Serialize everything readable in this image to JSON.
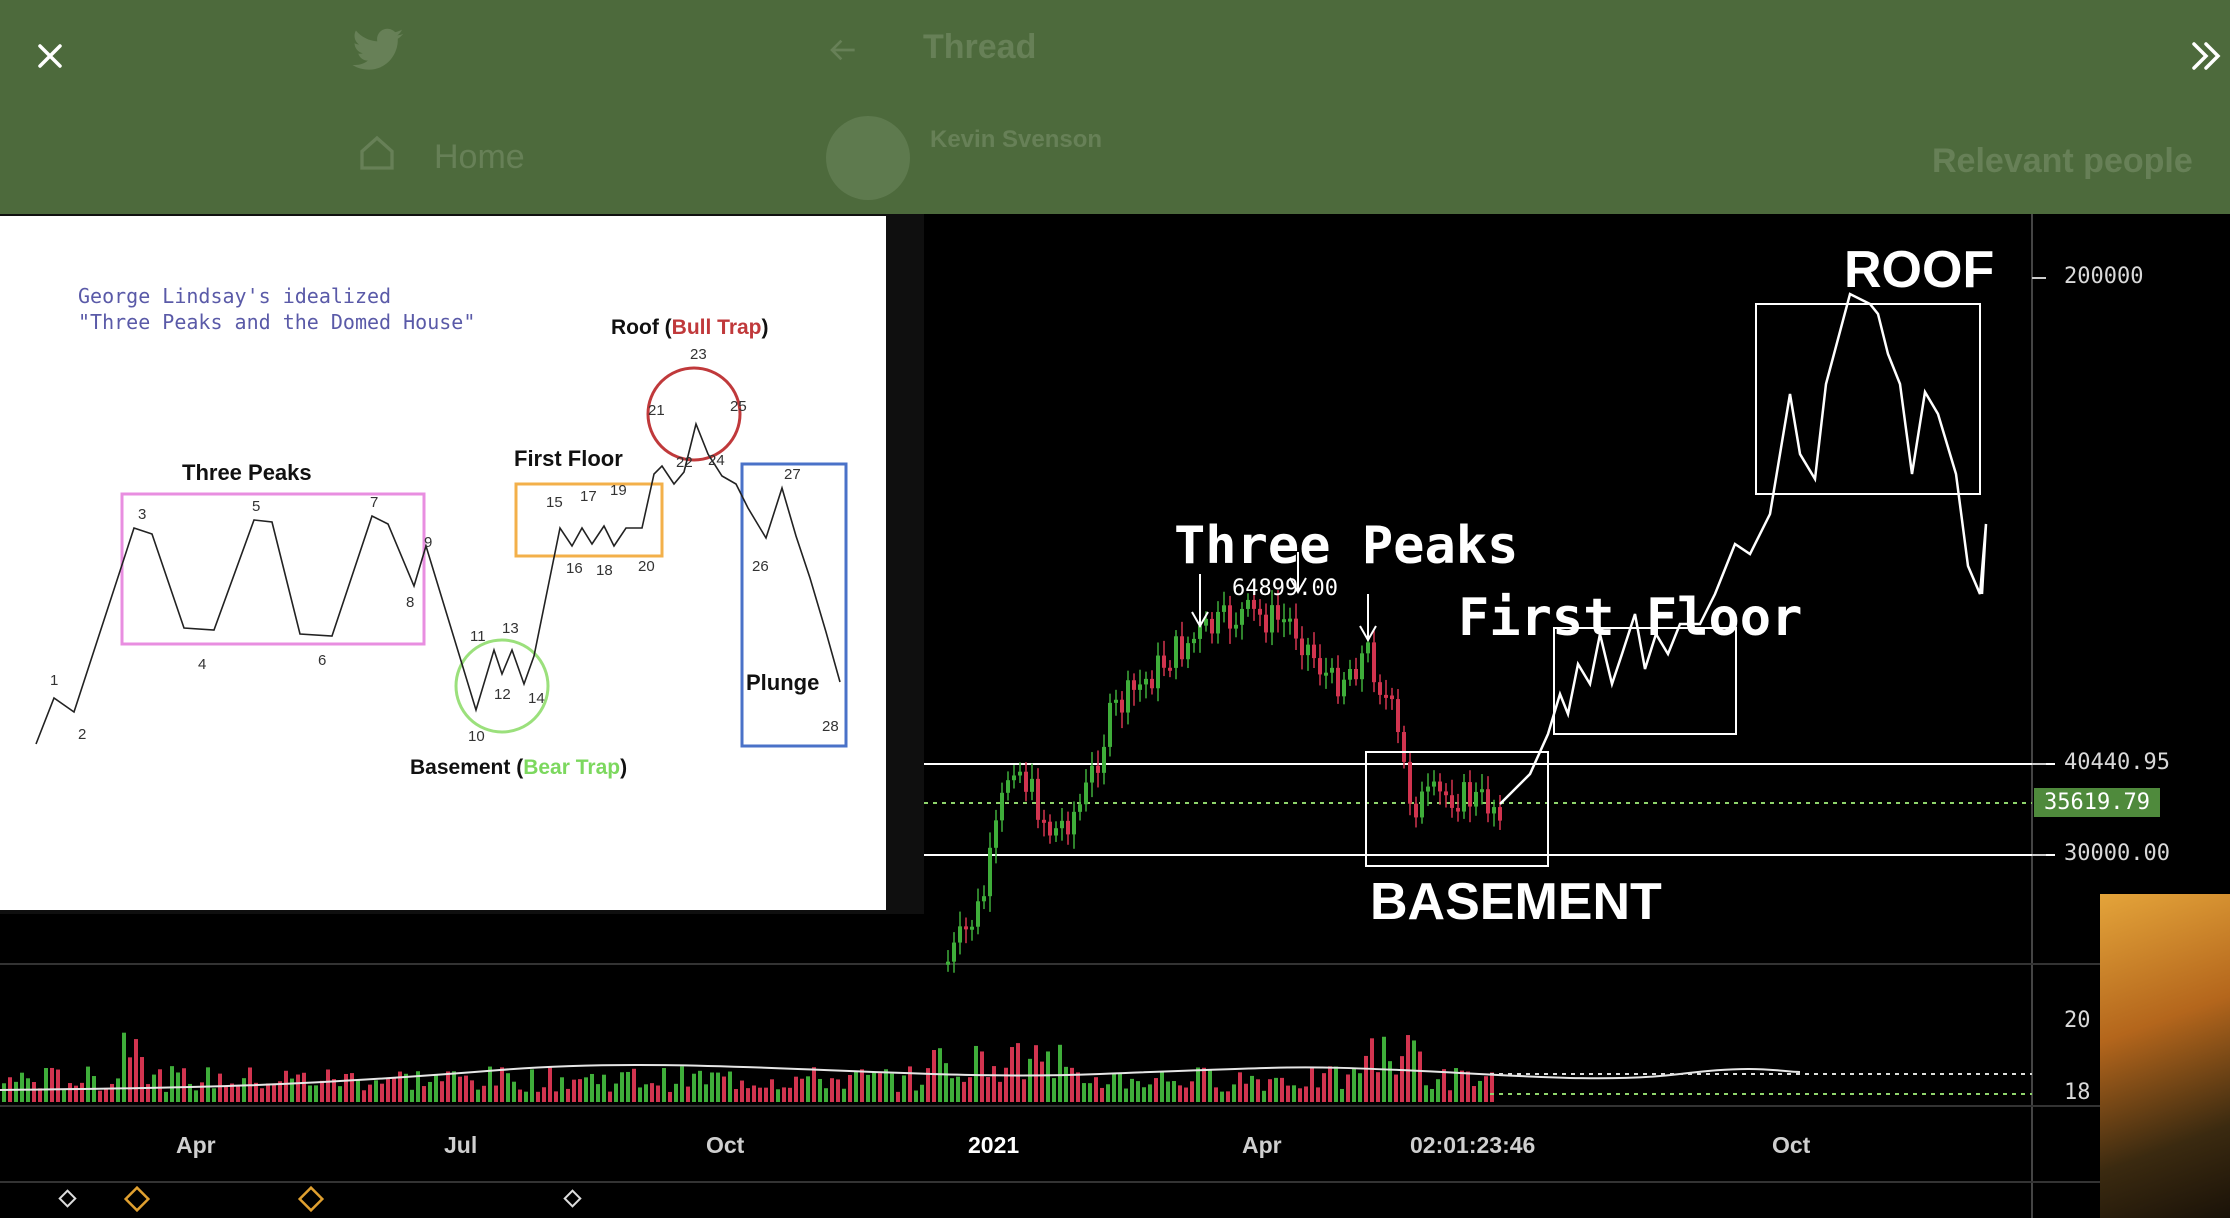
{
  "viewer": {
    "close_label": "×",
    "expand_label": "»"
  },
  "background_page": {
    "nav_home": "Home",
    "thread_title": "Thread",
    "author_name": "Kevin Svenson",
    "sidebar_heading": "Relevant people"
  },
  "diagram": {
    "title_line1": "George Lindsay's idealized",
    "title_line2": "\"Three Peaks and the Domed House\"",
    "roof_label": "Roof (",
    "roof_highlight": "Bull Trap",
    "roof_close": ")",
    "three_peaks_label": "Three Peaks",
    "first_floor_label": "First Floor",
    "plunge_label": "Plunge",
    "basement_label": "Basement (",
    "basement_highlight": "Bear Trap",
    "basement_close": ")",
    "point_numbers": [
      "1",
      "2",
      "3",
      "4",
      "5",
      "6",
      "7",
      "8",
      "9",
      "10",
      "11",
      "12",
      "13",
      "14",
      "15",
      "16",
      "17",
      "18",
      "19",
      "20",
      "21",
      "22",
      "23",
      "24",
      "25",
      "26",
      "27",
      "28"
    ],
    "colors": {
      "three_peaks_box": "#e88ee0",
      "first_floor_box": "#f3b04a",
      "roof_circle": "#c0393b",
      "basement_circle": "#9be07c",
      "plunge_box": "#4a72c8",
      "bull_trap": "#c0393b",
      "bear_trap": "#7cd85e",
      "title_text": "#5a5aa8"
    }
  },
  "chart": {
    "annotations": {
      "three_peaks": "Three Peaks",
      "first_floor": "First Floor",
      "roof": "ROOF",
      "basement": "BASEMENT",
      "peak_value": "64899.00"
    },
    "price_axis": [
      "200000",
      "40440.95",
      "30000.00"
    ],
    "current_price": "35619.79",
    "volume_axis": [
      "20",
      "18"
    ],
    "time_axis": [
      "Apr",
      "Jul",
      "Oct",
      "2021",
      "Apr",
      "02:01:23:46",
      "Oct"
    ],
    "colors": {
      "up": "#3fae3a",
      "down": "#d2344f",
      "current_price_bg": "#4f8a3c",
      "line": "#ffffff"
    }
  }
}
